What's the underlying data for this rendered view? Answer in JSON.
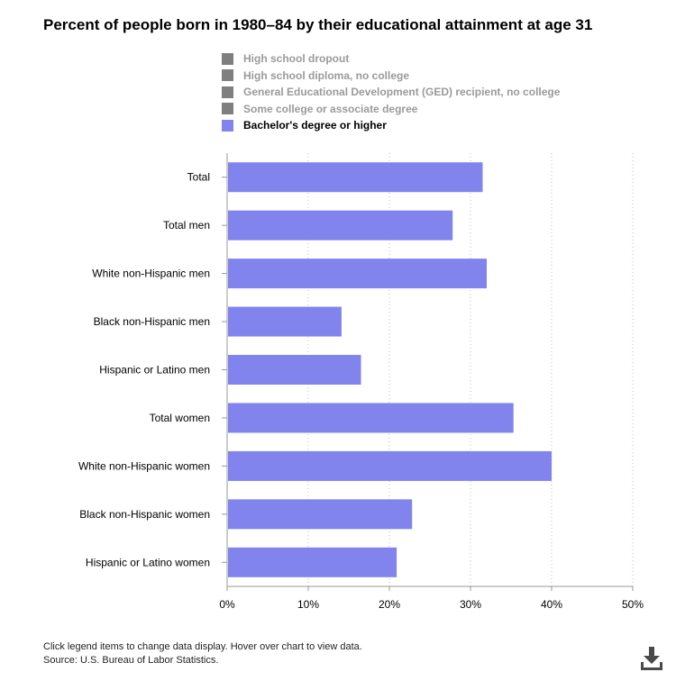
{
  "colors": {
    "bar": "#8084ec",
    "legend_inactive": "#7f7f7f",
    "gridline": "#bfbfbf",
    "axis": "#999999"
  },
  "legend": [
    {
      "label": "High school dropout",
      "active": false
    },
    {
      "label": "High school diploma, no college",
      "active": false
    },
    {
      "label": "General Educational Development (GED) recipient, no college",
      "active": false
    },
    {
      "label": "Some college or associate degree",
      "active": false
    },
    {
      "label": "Bachelor's degree or higher",
      "active": true
    }
  ],
  "chart_data": {
    "type": "bar",
    "orientation": "horizontal",
    "title": "Percent of people born in 1980–84 by their educational attainment at age 31",
    "categories": [
      "Total",
      "Total men",
      "White non-Hispanic men",
      "Black non-Hispanic men",
      "Hispanic or Latino men",
      "Total women",
      "White non-Hispanic women",
      "Black non-Hispanic women",
      "Hispanic or Latino women"
    ],
    "series": [
      {
        "name": "Bachelor's degree or higher",
        "values": [
          31.5,
          27.8,
          32.0,
          14.1,
          16.5,
          35.3,
          40.0,
          22.8,
          20.9
        ]
      }
    ],
    "xlim": [
      0,
      50
    ],
    "xticks": [
      0,
      10,
      20,
      30,
      40,
      50
    ],
    "xtick_labels": [
      "0%",
      "10%",
      "20%",
      "30%",
      "40%",
      "50%"
    ],
    "xlabel": "",
    "ylabel": "",
    "grid": true
  },
  "footer": {
    "note": "Click legend items to change data display. Hover over chart to view data.",
    "source": "Source: U.S. Bureau of Labor Statistics."
  },
  "icons": {
    "download": "download-icon"
  }
}
